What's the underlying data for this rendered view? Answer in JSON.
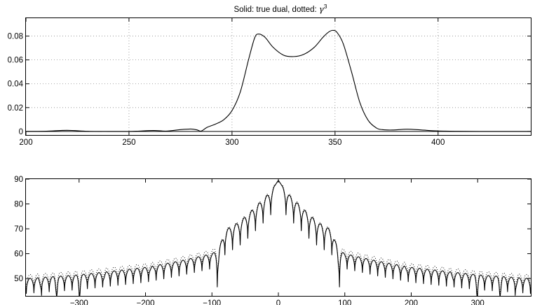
{
  "chart_data": [
    {
      "type": "line",
      "title": "Solid: true dual, dotted: ",
      "title_math": "γ",
      "title_sup": "3",
      "xlim": [
        200,
        445
      ],
      "ylim": [
        -0.003,
        0.095
      ],
      "xticks": [
        200,
        250,
        300,
        350,
        400
      ],
      "yticks": [
        0,
        0.02,
        0.04,
        0.06,
        0.08
      ],
      "grid": true,
      "reference_line_y": 0,
      "series": [
        {
          "style": "solid",
          "x": [
            200,
            210,
            220,
            230,
            240,
            250,
            255,
            262,
            268,
            275,
            280,
            283,
            285,
            288,
            292,
            296,
            300,
            304,
            308,
            311,
            313,
            316,
            320,
            325,
            330,
            335,
            340,
            344,
            347,
            349,
            351,
            354,
            358,
            362,
            366,
            370,
            373,
            378,
            385,
            392,
            400,
            410,
            420,
            430,
            445
          ],
          "y": [
            0,
            0.0002,
            0.0009,
            0.0001,
            0,
            0,
            0.0003,
            0.0008,
            0.0003,
            0.0015,
            0.002,
            0.0013,
            0.0003,
            0.0035,
            0.0062,
            0.0098,
            0.0175,
            0.033,
            0.06,
            0.0785,
            0.0817,
            0.079,
            0.0705,
            0.064,
            0.0628,
            0.0648,
            0.0707,
            0.0787,
            0.0835,
            0.0848,
            0.083,
            0.0735,
            0.05,
            0.0245,
            0.0095,
            0.003,
            0.0015,
            0.0012,
            0.0019,
            0.0012,
            0.0004,
            0.0001,
            0,
            0,
            0
          ]
        }
      ]
    },
    {
      "type": "line",
      "xlim": [
        -380,
        380
      ],
      "ylim": [
        43,
        90
      ],
      "xticks": [
        -300,
        -200,
        -100,
        0,
        100,
        200,
        300
      ],
      "yticks": [
        50,
        60,
        70,
        80,
        90
      ],
      "grid": false,
      "envelope_points": [
        [
          0,
          89.5
        ],
        [
          5,
          87.5
        ],
        [
          15,
          84
        ],
        [
          30,
          80
        ],
        [
          45,
          76
        ],
        [
          60,
          72.5
        ],
        [
          80,
          69.5
        ],
        [
          90,
          61.5
        ],
        [
          100,
          60
        ],
        [
          150,
          57
        ],
        [
          200,
          54.5
        ],
        [
          250,
          53
        ],
        [
          300,
          51.5
        ],
        [
          380,
          50
        ]
      ],
      "lobe_spacing": 11.5,
      "null_depth": 6,
      "deep_nulls_x": [
        -90,
        -360,
        -335,
        -300,
        -260,
        -190,
        90,
        190,
        260,
        300,
        335,
        360
      ],
      "series": [
        {
          "style": "solid"
        },
        {
          "style": "dotted",
          "offset": 1.5
        }
      ]
    }
  ]
}
